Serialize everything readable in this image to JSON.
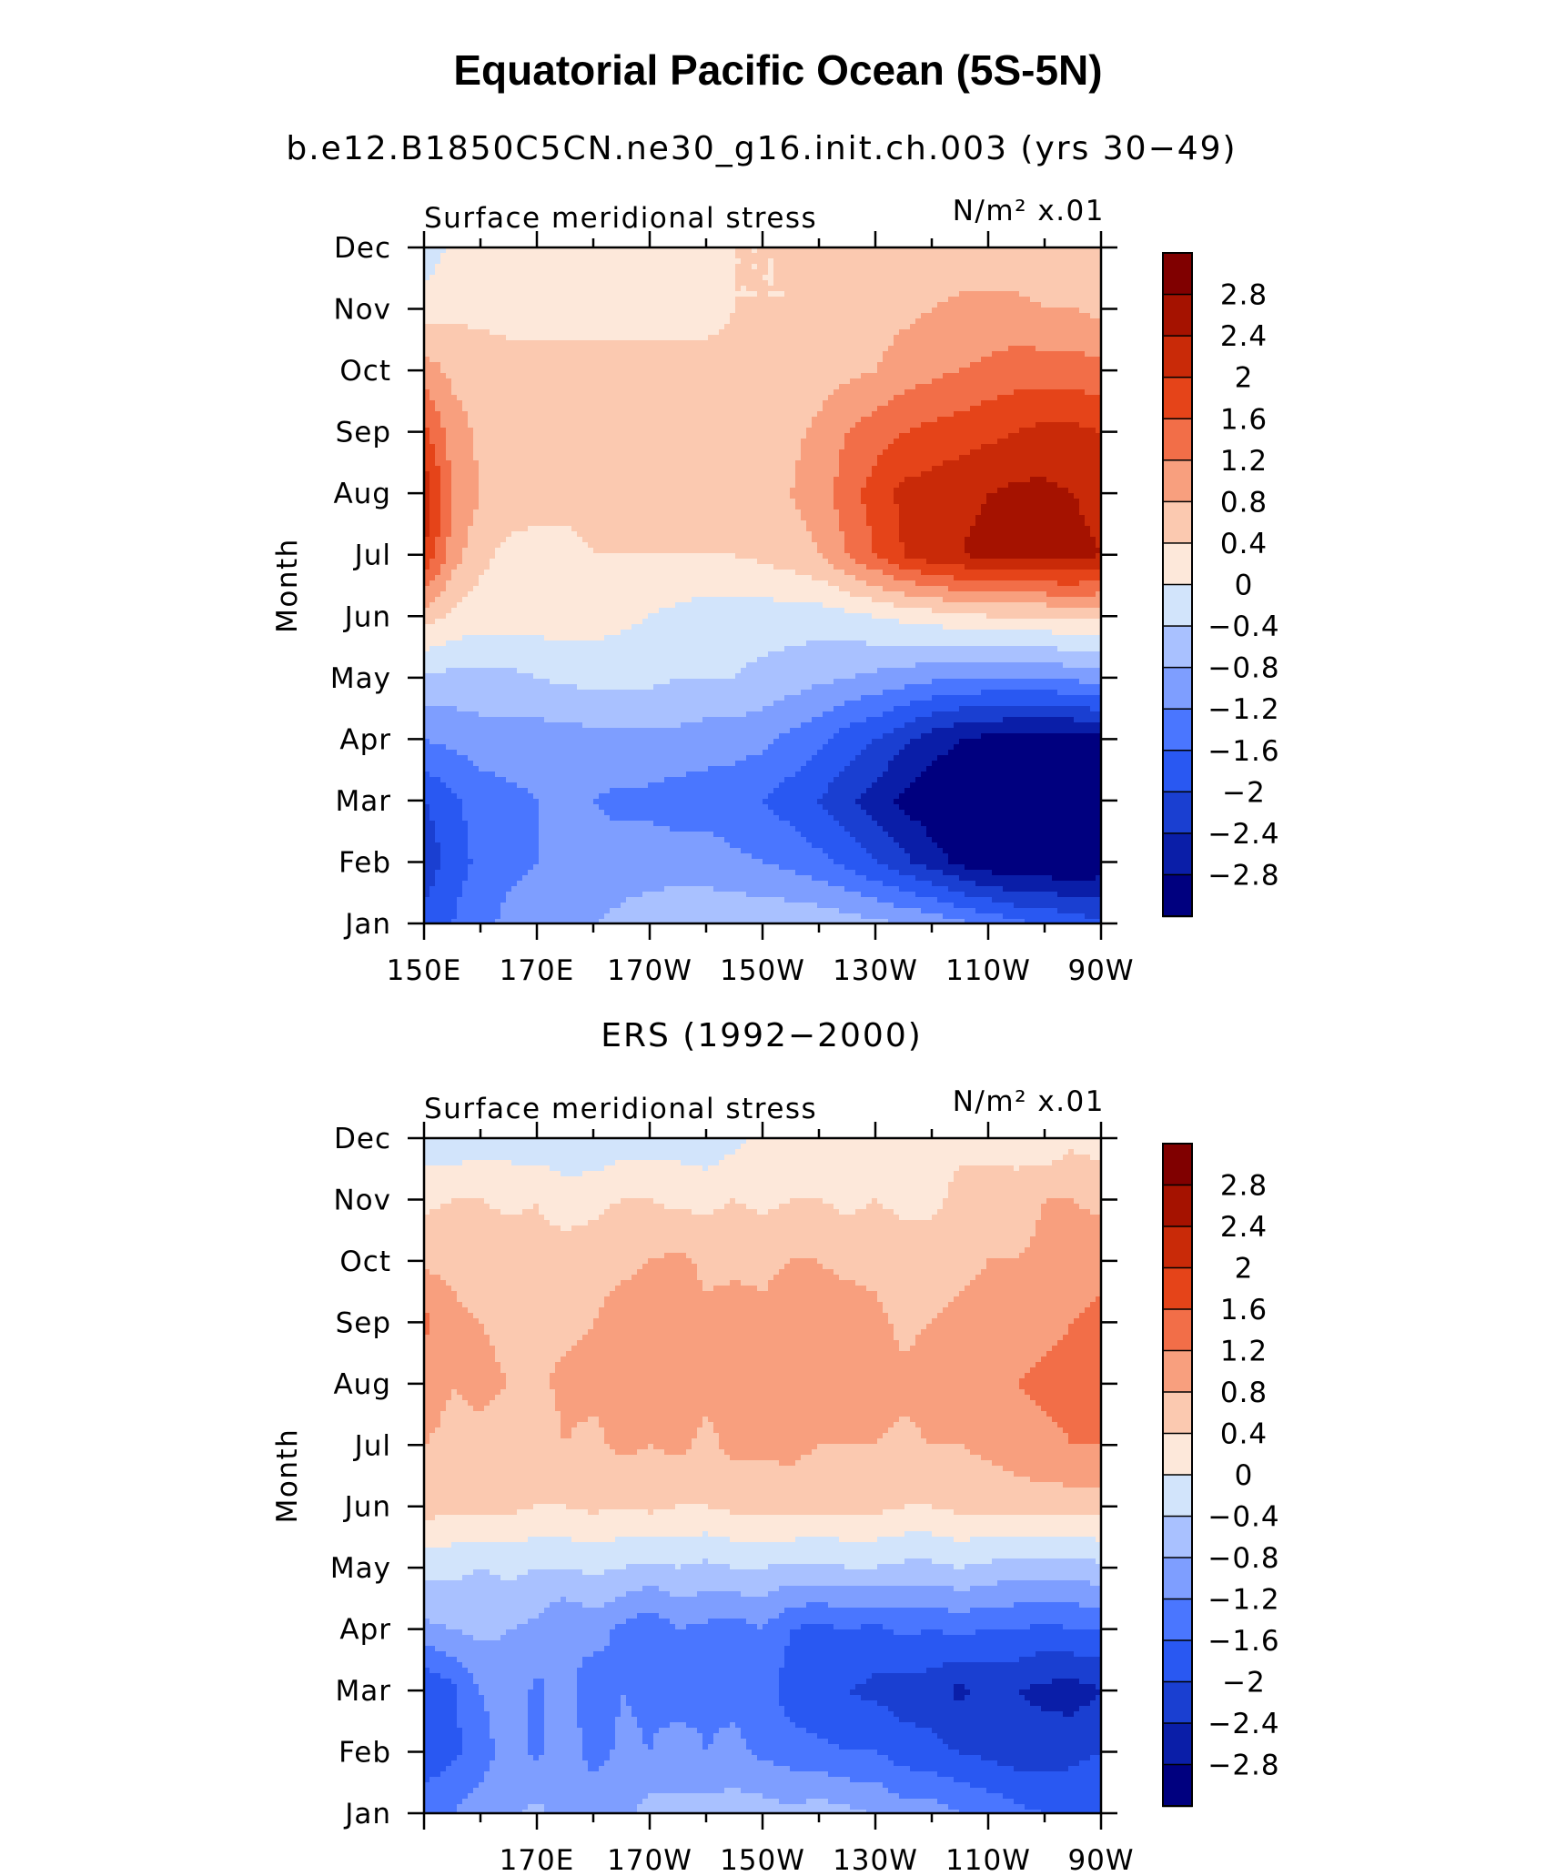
{
  "figure": {
    "title": "Equatorial Pacific Ocean (5S-5N)",
    "panel_titles": [
      "b.e12.B1850C5CN.ne30_g16.init.ch.003 (yrs 30−49)",
      "ERS (1992−2000)"
    ]
  },
  "palette": [
    "#00007f",
    "#0a1ea8",
    "#1a3fd1",
    "#2958f2",
    "#4a76ff",
    "#7e9eff",
    "#a9c1ff",
    "#d2e4fb",
    "#fde8da",
    "#fbc9b0",
    "#f89f7e",
    "#f26e48",
    "#e54419",
    "#c92a08",
    "#a51200",
    "#800000"
  ],
  "chart_data": [
    {
      "type": "heatmap",
      "name_label": "Surface meridional stress",
      "units_label": "N/m² x.01",
      "ylabel": "Month",
      "x_tick_labels": [
        "150E",
        "170E",
        "170W",
        "150W",
        "130W",
        "110W",
        "90W"
      ],
      "x": [
        "150E",
        "155E",
        "160E",
        "165E",
        "170E",
        "175E",
        "180",
        "175W",
        "170W",
        "165W",
        "160W",
        "155W",
        "150W",
        "145W",
        "140W",
        "135W",
        "130W",
        "125W",
        "120W",
        "115W",
        "110W",
        "105W",
        "100W",
        "95W",
        "90W"
      ],
      "y": [
        "Jan",
        "Feb",
        "Mar",
        "Apr",
        "May",
        "Jun",
        "Jul",
        "Aug",
        "Sep",
        "Oct",
        "Nov",
        "Dec"
      ],
      "zlim": [
        -3.2,
        3.2
      ],
      "levels": [
        -2.8,
        -2.4,
        -2,
        -1.6,
        -1.2,
        -0.8,
        -0.4,
        0,
        0.4,
        0.8,
        1.2,
        1.6,
        2,
        2.4,
        2.8
      ],
      "legend_labels": [
        "2.8",
        "2.4",
        "2",
        "1.6",
        "1.2",
        "0.8",
        "0.4",
        "0",
        "−0.4",
        "−0.8",
        "−1.2",
        "−1.6",
        "−2",
        "−2.4",
        "−2.8"
      ],
      "z": [
        [
          -1.8,
          -1.6,
          -1.3,
          -1.1,
          -1.0,
          -0.9,
          -0.8,
          -0.7,
          -0.6,
          -0.5,
          -0.5,
          -0.5,
          -0.5,
          -0.5,
          -0.5,
          -0.6,
          -0.7,
          -0.8,
          -0.9,
          -1.1,
          -1.3,
          -1.5,
          -1.6,
          -1.8,
          -1.9
        ],
        [
          -2.3,
          -1.8,
          -1.5,
          -1.3,
          -1.2,
          -1.1,
          -1.1,
          -1.0,
          -1.0,
          -1.0,
          -1.0,
          -1.1,
          -1.2,
          -1.3,
          -1.5,
          -1.7,
          -2.0,
          -2.3,
          -2.6,
          -2.9,
          -3.1,
          -3.2,
          -3.2,
          -3.2,
          -3.1
        ],
        [
          -2.0,
          -1.7,
          -1.4,
          -1.3,
          -1.2,
          -1.2,
          -1.2,
          -1.3,
          -1.3,
          -1.4,
          -1.4,
          -1.5,
          -1.6,
          -1.8,
          -2.0,
          -2.3,
          -2.6,
          -2.9,
          -3.1,
          -3.2,
          -3.3,
          -3.3,
          -3.3,
          -3.3,
          -3.2
        ],
        [
          -1.2,
          -1.1,
          -1.0,
          -1.0,
          -1.0,
          -1.0,
          -0.9,
          -0.9,
          -0.9,
          -0.9,
          -1.0,
          -1.0,
          -1.1,
          -1.3,
          -1.5,
          -1.8,
          -2.0,
          -2.3,
          -2.6,
          -2.8,
          -2.9,
          -3.0,
          -3.0,
          -3.0,
          -2.9
        ],
        [
          -0.5,
          -0.5,
          -0.5,
          -0.5,
          -0.4,
          -0.3,
          -0.3,
          -0.3,
          -0.3,
          -0.4,
          -0.4,
          -0.4,
          -0.5,
          -0.6,
          -0.7,
          -0.8,
          -0.9,
          -1.0,
          -1.1,
          -1.2,
          -1.2,
          -1.2,
          -1.2,
          -1.1,
          -1.0
        ],
        [
          0.6,
          0.3,
          0.2,
          0.2,
          0.2,
          0.2,
          0.2,
          0.1,
          0.0,
          -0.1,
          -0.2,
          -0.2,
          -0.2,
          -0.2,
          -0.2,
          -0.1,
          0.0,
          0.1,
          0.2,
          0.3,
          0.4,
          0.4,
          0.4,
          0.5,
          0.5
        ],
        [
          2.0,
          1.0,
          0.5,
          0.3,
          0.3,
          0.3,
          0.4,
          0.4,
          0.4,
          0.4,
          0.4,
          0.4,
          0.5,
          0.6,
          0.8,
          1.2,
          1.6,
          2.0,
          2.3,
          2.4,
          2.5,
          2.6,
          2.6,
          2.6,
          2.4
        ],
        [
          2.3,
          1.2,
          0.8,
          0.6,
          0.5,
          0.5,
          0.5,
          0.5,
          0.5,
          0.5,
          0.5,
          0.5,
          0.6,
          0.8,
          1.0,
          1.4,
          1.8,
          2.1,
          2.2,
          2.3,
          2.4,
          2.5,
          2.5,
          2.4,
          2.2
        ],
        [
          1.7,
          1.0,
          0.7,
          0.6,
          0.6,
          0.6,
          0.6,
          0.6,
          0.6,
          0.6,
          0.6,
          0.6,
          0.6,
          0.7,
          0.9,
          1.2,
          1.4,
          1.6,
          1.7,
          1.8,
          1.9,
          2.0,
          2.1,
          2.1,
          2.0
        ],
        [
          1.0,
          0.7,
          0.6,
          0.5,
          0.5,
          0.5,
          0.5,
          0.5,
          0.5,
          0.5,
          0.5,
          0.5,
          0.5,
          0.5,
          0.6,
          0.7,
          0.8,
          1.0,
          1.1,
          1.2,
          1.3,
          1.4,
          1.4,
          1.4,
          1.3
        ],
        [
          0.2,
          0.3,
          0.3,
          0.3,
          0.3,
          0.3,
          0.3,
          0.3,
          0.3,
          0.3,
          0.3,
          0.4,
          0.4,
          0.4,
          0.5,
          0.5,
          0.6,
          0.7,
          0.8,
          0.9,
          0.9,
          0.9,
          0.8,
          0.8,
          0.7
        ],
        [
          -0.3,
          0.1,
          0.2,
          0.2,
          0.2,
          0.2,
          0.2,
          0.2,
          0.3,
          0.3,
          0.3,
          0.4,
          0.4,
          0.4,
          0.4,
          0.4,
          0.4,
          0.4,
          0.5,
          0.5,
          0.5,
          0.5,
          0.5,
          0.4,
          0.4
        ]
      ]
    },
    {
      "type": "heatmap",
      "name_label": "Surface meridional stress",
      "units_label": "N/m² x.01",
      "ylabel": "Month",
      "x_tick_labels": [
        "170E",
        "170W",
        "150W",
        "130W",
        "110W",
        "90W"
      ],
      "x": [
        "150E",
        "155E",
        "160E",
        "165E",
        "170E",
        "175E",
        "180",
        "175W",
        "170W",
        "165W",
        "160W",
        "155W",
        "150W",
        "145W",
        "140W",
        "135W",
        "130W",
        "125W",
        "120W",
        "115W",
        "110W",
        "105W",
        "100W",
        "95W",
        "90W"
      ],
      "y": [
        "Jan",
        "Feb",
        "Mar",
        "Apr",
        "May",
        "Jun",
        "Jul",
        "Aug",
        "Sep",
        "Oct",
        "Nov",
        "Dec"
      ],
      "zlim": [
        -3.2,
        3.2
      ],
      "levels": [
        -2.8,
        -2.4,
        -2,
        -1.6,
        -1.2,
        -0.8,
        -0.4,
        0,
        0.4,
        0.8,
        1.2,
        1.6,
        2,
        2.4,
        2.8
      ],
      "legend_labels": [
        "2.8",
        "2.4",
        "2",
        "1.6",
        "1.2",
        "0.8",
        "0.4",
        "0",
        "−0.4",
        "−0.8",
        "−1.2",
        "−1.6",
        "−2",
        "−2.4",
        "−2.8"
      ],
      "z": [
        [
          -1.3,
          -1.2,
          -1.0,
          -0.9,
          -0.7,
          -1.0,
          -0.8,
          -1.0,
          -0.6,
          -0.7,
          -0.6,
          -0.6,
          -0.6,
          -0.7,
          -0.6,
          -0.7,
          -0.8,
          -1.0,
          -1.0,
          -1.2,
          -1.3,
          -1.5,
          -1.6,
          -1.7,
          -1.7
        ],
        [
          -1.9,
          -1.7,
          -1.4,
          -1.0,
          -1.3,
          -0.9,
          -1.4,
          -1.1,
          -1.2,
          -1.0,
          -1.2,
          -1.1,
          -1.3,
          -1.4,
          -1.5,
          -1.6,
          -1.6,
          -1.8,
          -1.9,
          -2.0,
          -2.1,
          -2.2,
          -2.2,
          -2.1,
          -2.0
        ],
        [
          -2.0,
          -1.7,
          -1.2,
          -0.9,
          -1.3,
          -1.0,
          -1.5,
          -1.2,
          -1.3,
          -1.4,
          -1.3,
          -1.3,
          -1.4,
          -1.8,
          -1.9,
          -2.0,
          -2.1,
          -2.2,
          -2.2,
          -2.5,
          -2.3,
          -2.4,
          -2.5,
          -2.6,
          -2.4
        ],
        [
          -0.9,
          -0.8,
          -0.7,
          -0.8,
          -0.9,
          -1.2,
          -1.0,
          -1.3,
          -1.5,
          -1.2,
          -1.3,
          -1.4,
          -1.2,
          -1.6,
          -1.7,
          -1.6,
          -1.7,
          -1.5,
          -1.6,
          -1.5,
          -1.6,
          -1.6,
          -1.7,
          -1.6,
          -1.6
        ],
        [
          -0.3,
          -0.3,
          -0.4,
          -0.3,
          -0.4,
          -0.4,
          -0.3,
          -0.4,
          -0.5,
          -0.4,
          -0.5,
          -0.4,
          -0.4,
          -0.5,
          -0.5,
          -0.4,
          -0.4,
          -0.5,
          -0.5,
          -0.4,
          -0.5,
          -0.6,
          -0.6,
          -0.6,
          -0.5
        ],
        [
          0.6,
          0.5,
          0.5,
          0.5,
          0.4,
          0.4,
          0.5,
          0.4,
          0.5,
          0.4,
          0.4,
          0.5,
          0.5,
          0.6,
          0.5,
          0.5,
          0.5,
          0.4,
          0.4,
          0.5,
          0.5,
          0.6,
          0.6,
          0.6,
          0.6
        ],
        [
          0.8,
          0.7,
          0.7,
          0.6,
          0.6,
          0.8,
          0.7,
          0.9,
          0.8,
          0.9,
          0.7,
          0.9,
          0.9,
          0.9,
          0.8,
          0.8,
          0.8,
          0.7,
          0.8,
          0.8,
          0.9,
          1.0,
          1.1,
          1.2,
          1.2
        ],
        [
          1.0,
          0.8,
          0.9,
          0.8,
          0.7,
          0.9,
          0.9,
          1.0,
          1.0,
          1.0,
          0.9,
          1.0,
          1.1,
          1.1,
          1.1,
          1.0,
          1.0,
          0.9,
          1.0,
          0.9,
          1.1,
          1.2,
          1.3,
          1.3,
          1.3
        ],
        [
          1.3,
          0.9,
          0.8,
          0.7,
          0.8,
          0.7,
          0.8,
          1.0,
          1.0,
          1.1,
          0.9,
          1.0,
          0.9,
          1.0,
          1.0,
          1.0,
          0.9,
          0.7,
          0.8,
          0.9,
          0.9,
          1.0,
          1.1,
          1.2,
          1.3
        ],
        [
          0.7,
          0.7,
          0.6,
          0.7,
          0.5,
          0.6,
          0.6,
          0.7,
          0.8,
          0.9,
          0.7,
          0.7,
          0.7,
          0.8,
          0.8,
          0.7,
          0.7,
          0.6,
          0.6,
          0.7,
          0.8,
          0.8,
          0.9,
          1.0,
          1.1
        ],
        [
          0.3,
          0.4,
          0.4,
          0.3,
          0.4,
          0.2,
          0.3,
          0.4,
          0.4,
          0.3,
          0.3,
          0.4,
          0.3,
          0.4,
          0.4,
          0.3,
          0.4,
          0.3,
          0.3,
          0.5,
          0.7,
          0.6,
          0.8,
          0.8,
          0.7
        ],
        [
          -0.2,
          -0.3,
          -0.2,
          -0.2,
          -0.3,
          -0.3,
          -0.4,
          -0.2,
          -0.2,
          -0.2,
          -0.3,
          -0.1,
          0.1,
          0.1,
          0.1,
          0.1,
          0.1,
          0.2,
          0.3,
          0.3,
          0.2,
          0.2,
          0.1,
          0.3,
          0.2
        ]
      ]
    }
  ]
}
